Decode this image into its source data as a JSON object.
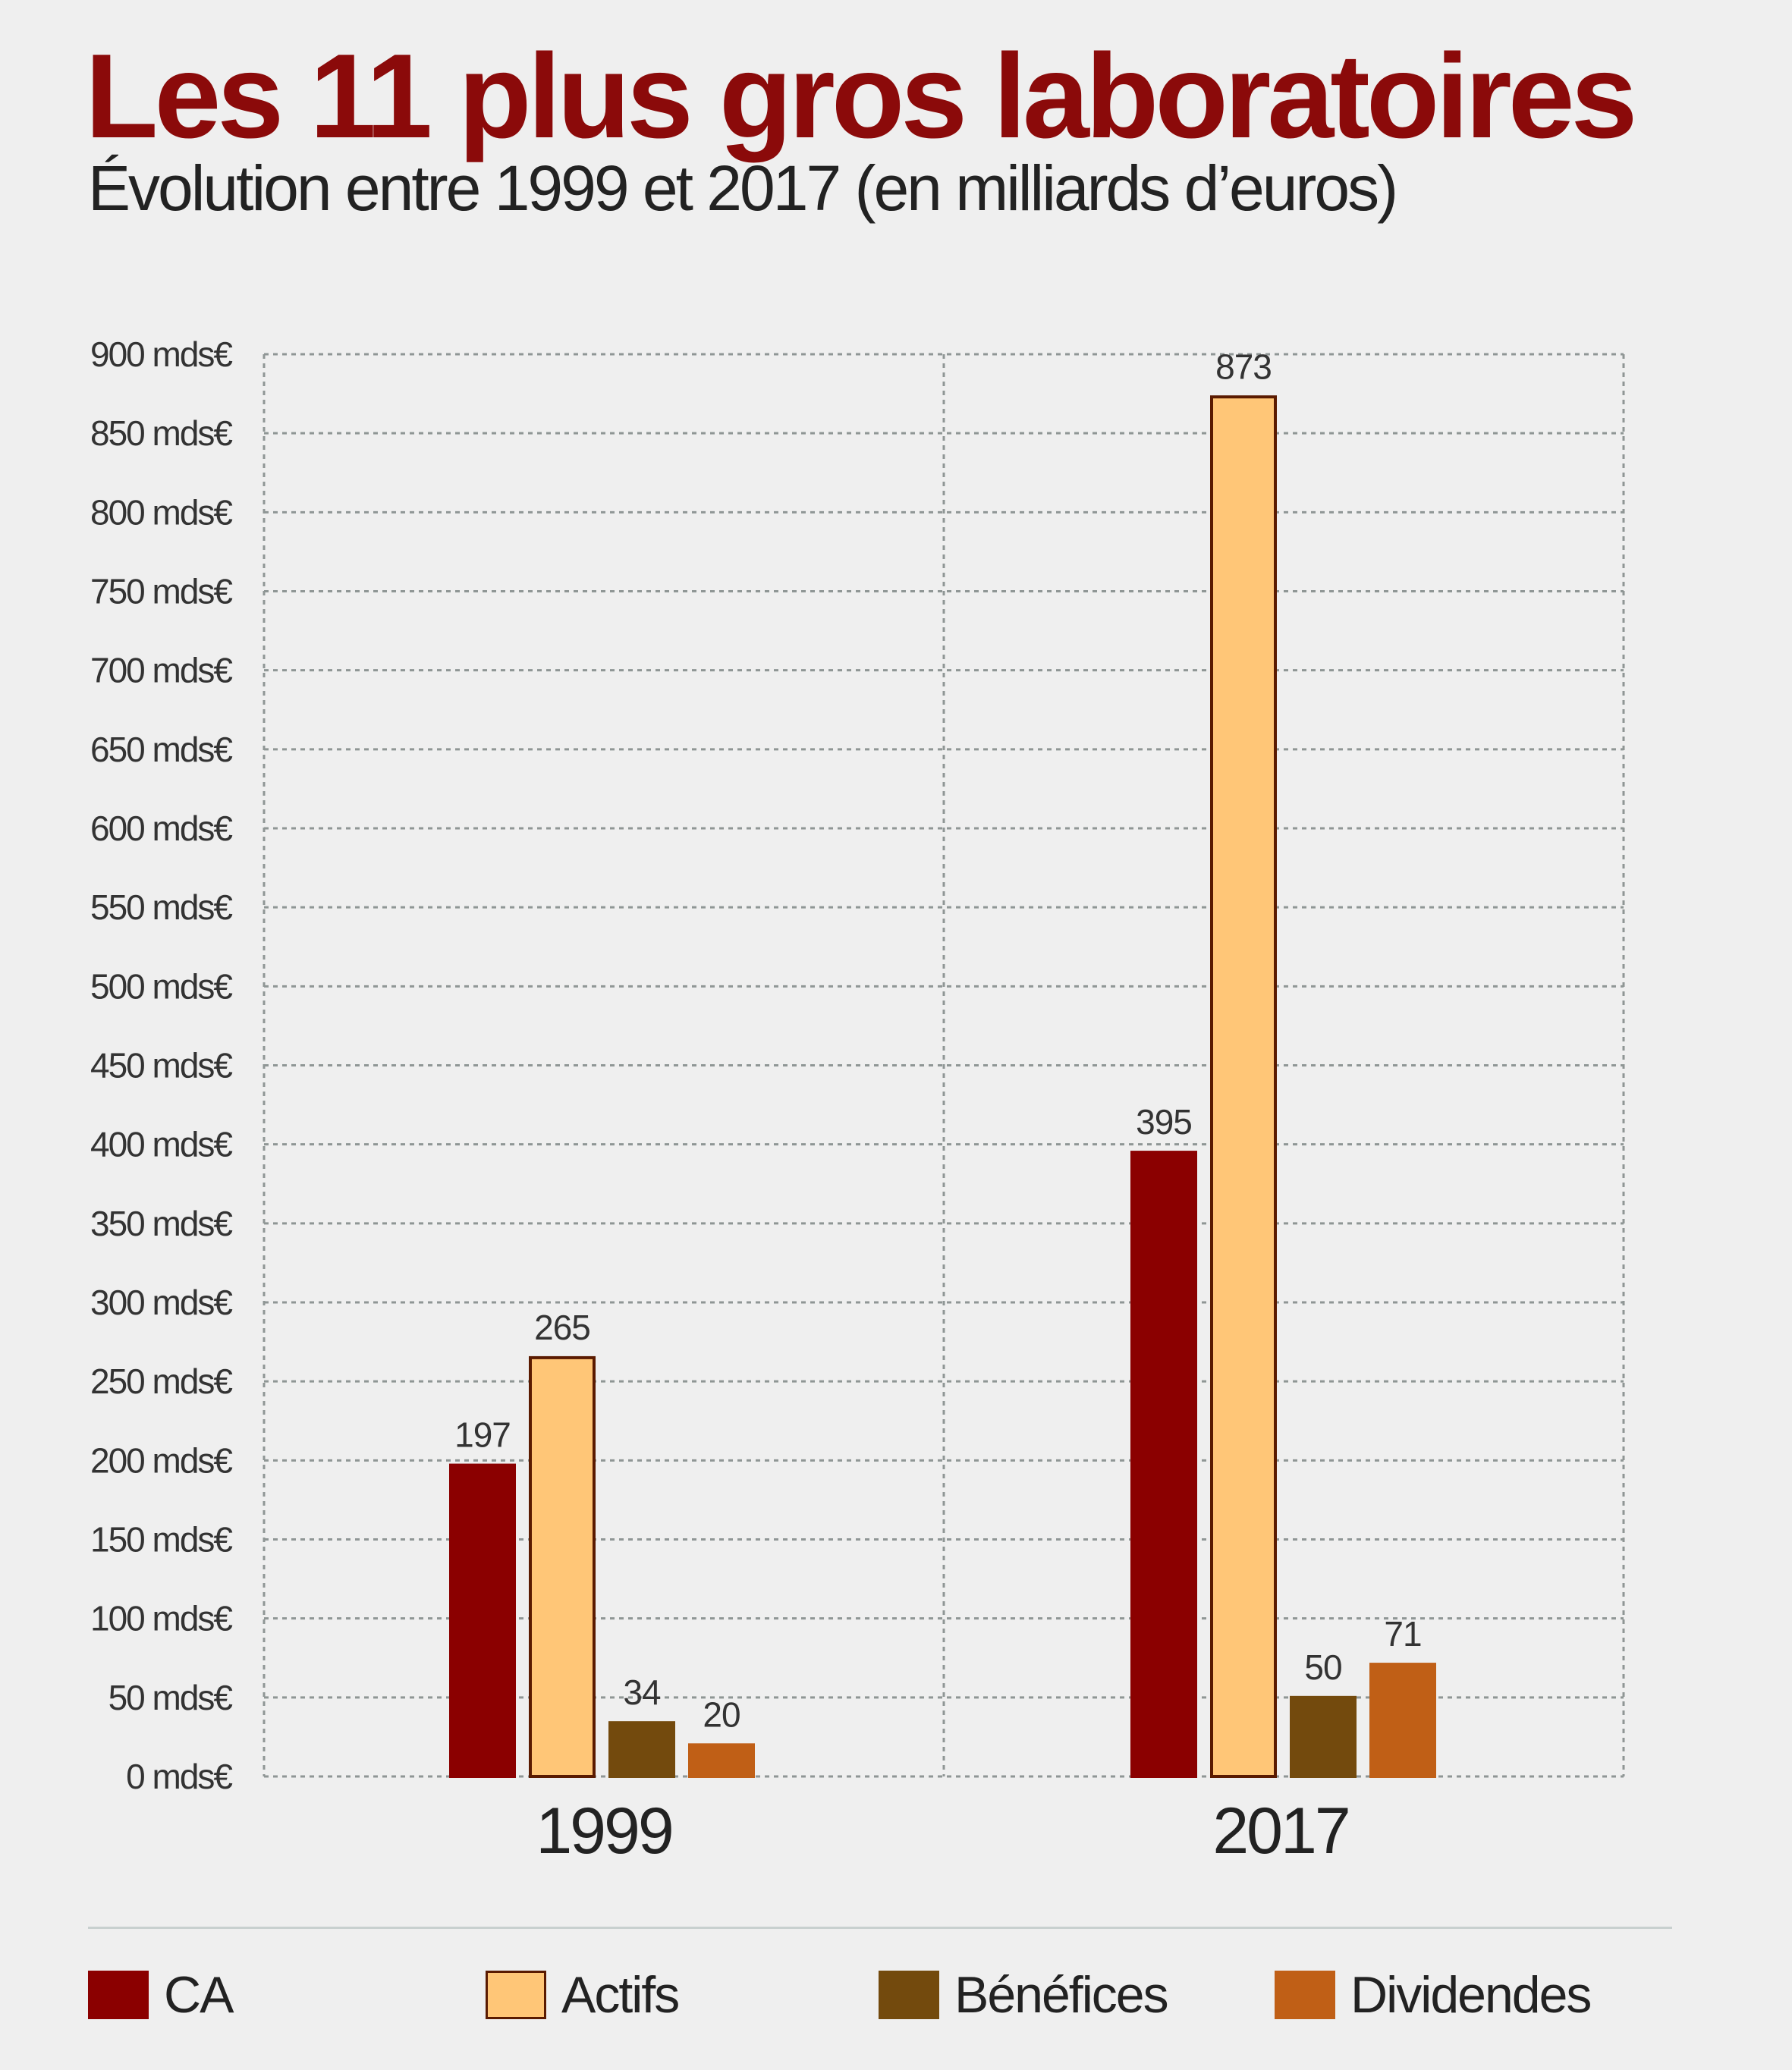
{
  "header": {
    "title": "Les 11 plus gros laboratoires",
    "subtitle": "Évolution entre 1999 et 2017 (en milliards d’euros)"
  },
  "chart_data": {
    "type": "bar",
    "categories": [
      "1999",
      "2017"
    ],
    "series": [
      {
        "name": "CA",
        "values": [
          197,
          395
        ],
        "color": "#8b0000",
        "border": "#8b0000"
      },
      {
        "name": "Actifs",
        "values": [
          265,
          873
        ],
        "color": "#ffc677",
        "border": "#5a1a00"
      },
      {
        "name": "Bénéfices",
        "values": [
          34,
          50
        ],
        "color": "#734a0d",
        "border": "#734a0d"
      },
      {
        "name": "Dividendes",
        "values": [
          20,
          71
        ],
        "color": "#c05f16",
        "border": "#c05f16"
      }
    ],
    "ylim": [
      0,
      900
    ],
    "yticks": [
      0,
      50,
      100,
      150,
      200,
      250,
      300,
      350,
      400,
      450,
      500,
      550,
      600,
      650,
      700,
      750,
      800,
      850,
      900
    ],
    "ytick_suffix": " mds€",
    "grid": true,
    "legend_position": "bottom"
  },
  "legend": {
    "items": [
      {
        "label": "CA",
        "color": "#8b0000",
        "border": "#8b0000"
      },
      {
        "label": "Actifs",
        "color": "#ffc677",
        "border": "#5a1a00"
      },
      {
        "label": "Bénéfices",
        "color": "#734a0d",
        "border": "#734a0d"
      },
      {
        "label": "Dividendes",
        "color": "#c05f16",
        "border": "#c05f16"
      }
    ]
  }
}
